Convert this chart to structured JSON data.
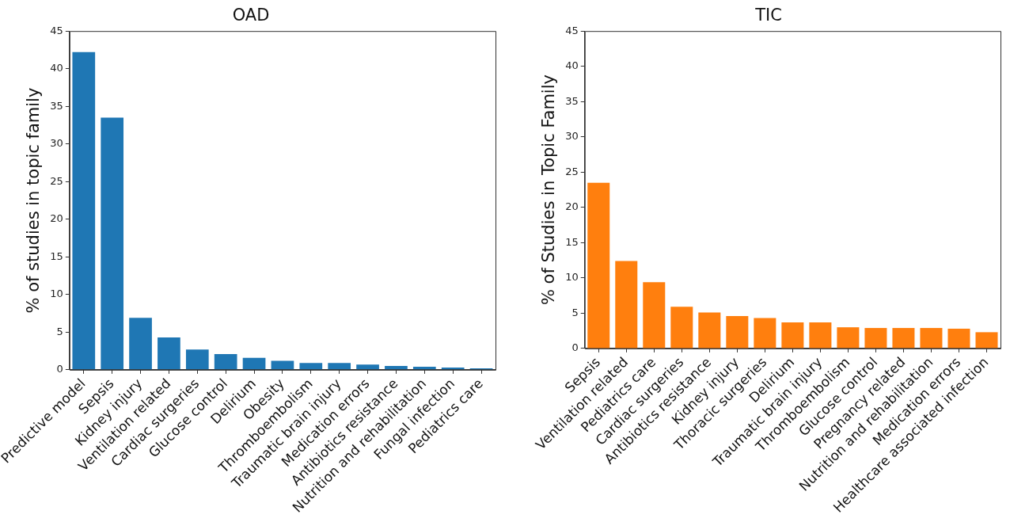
{
  "chart_data": [
    {
      "type": "bar",
      "title": "OAD",
      "ylabel": "% of studies in topic family",
      "categories": [
        "Predictive model",
        "Sepsis",
        "Kidney injury",
        "Ventilation related",
        "Cardiac surgeries",
        "Glucose control",
        "Delirium",
        "Obesity",
        "Thromboembolism",
        "Traumatic brain injury",
        "Medication errors",
        "Antibiotics resistance",
        "Nutrition and rehabilitation",
        "Fungal infection",
        "Pediatrics care"
      ],
      "values": [
        42.2,
        33.5,
        6.9,
        4.3,
        2.7,
        2.1,
        1.6,
        1.2,
        0.9,
        0.9,
        0.7,
        0.5,
        0.4,
        0.3,
        0.2
      ],
      "color": "#1f77b4",
      "ylim": [
        0,
        45
      ],
      "yticks": [
        0,
        5,
        10,
        15,
        20,
        25,
        30,
        35,
        40,
        45
      ],
      "grid": false,
      "legend": false
    },
    {
      "type": "bar",
      "title": "TIC",
      "ylabel": "% of Studies in Topic Family",
      "categories": [
        "Sepsis",
        "Ventilation related",
        "Pediatrics care",
        "Cardiac surgeries",
        "Antibiotics resistance",
        "Kidney injury",
        "Thoracic surgeries",
        "Delirium",
        "Traumatic brain injury",
        "Thromboembolism",
        "Glucose control",
        "Pregnancy related",
        "Nutrition and rehabilitation",
        "Medication errors",
        "Healthcare associated infection"
      ],
      "values": [
        23.5,
        12.4,
        9.4,
        5.9,
        5.1,
        4.6,
        4.3,
        3.7,
        3.7,
        3.0,
        2.9,
        2.9,
        2.9,
        2.8,
        2.3
      ],
      "color": "#ff7f0e",
      "ylim": [
        0,
        45
      ],
      "yticks": [
        0,
        5,
        10,
        15,
        20,
        25,
        30,
        35,
        40,
        45
      ],
      "grid": false,
      "legend": false
    }
  ]
}
